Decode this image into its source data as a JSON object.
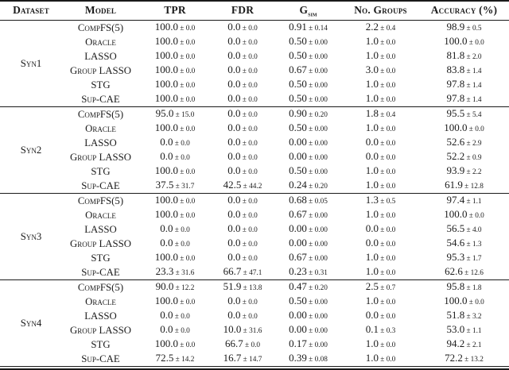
{
  "page": {
    "background": "#ffffff",
    "text_color": "#1b1b1b",
    "rule_color": "#1a1a1a"
  },
  "table": {
    "plus_minus": "±",
    "columns": [
      {
        "label": "Dataset"
      },
      {
        "label": "Model"
      },
      {
        "label": "TPR"
      },
      {
        "label": "FDR"
      },
      {
        "label": "G",
        "sub": "sim"
      },
      {
        "label": "No. Groups"
      },
      {
        "label": "Accuracy (%)"
      }
    ],
    "blocks": [
      {
        "dataset": "Syn1",
        "rows": [
          {
            "model": "CompFS(5)",
            "values": [
              {
                "v": "100.0",
                "e": "0.0"
              },
              {
                "v": "0.0",
                "e": "0.0"
              },
              {
                "v": "0.91",
                "e": "0.14"
              },
              {
                "v": "2.2",
                "e": "0.4"
              },
              {
                "v": "98.9",
                "e": "0.5"
              }
            ]
          },
          {
            "model": "Oracle",
            "values": [
              {
                "v": "100.0",
                "e": "0.0"
              },
              {
                "v": "0.0",
                "e": "0.0"
              },
              {
                "v": "0.50",
                "e": "0.00"
              },
              {
                "v": "1.0",
                "e": "0.0"
              },
              {
                "v": "100.0",
                "e": "0.0"
              }
            ]
          },
          {
            "model": "LASSO",
            "values": [
              {
                "v": "100.0",
                "e": "0.0"
              },
              {
                "v": "0.0",
                "e": "0.0"
              },
              {
                "v": "0.50",
                "e": "0.00"
              },
              {
                "v": "1.0",
                "e": "0.0"
              },
              {
                "v": "81.8",
                "e": "2.0"
              }
            ]
          },
          {
            "model": "Group LASSO",
            "values": [
              {
                "v": "100.0",
                "e": "0.0"
              },
              {
                "v": "0.0",
                "e": "0.0"
              },
              {
                "v": "0.67",
                "e": "0.00"
              },
              {
                "v": "3.0",
                "e": "0.0"
              },
              {
                "v": "83.8",
                "e": "1.4"
              }
            ]
          },
          {
            "model": "STG",
            "values": [
              {
                "v": "100.0",
                "e": "0.0"
              },
              {
                "v": "0.0",
                "e": "0.0"
              },
              {
                "v": "0.50",
                "e": "0.00"
              },
              {
                "v": "1.0",
                "e": "0.0"
              },
              {
                "v": "97.8",
                "e": "1.4"
              }
            ]
          },
          {
            "model": "Sup-CAE",
            "values": [
              {
                "v": "100.0",
                "e": "0.0"
              },
              {
                "v": "0.0",
                "e": "0.0"
              },
              {
                "v": "0.50",
                "e": "0.00"
              },
              {
                "v": "1.0",
                "e": "0.0"
              },
              {
                "v": "97.8",
                "e": "1.4"
              }
            ]
          }
        ]
      },
      {
        "dataset": "Syn2",
        "rows": [
          {
            "model": "CompFS(5)",
            "values": [
              {
                "v": "95.0",
                "e": "15.0"
              },
              {
                "v": "0.0",
                "e": "0.0"
              },
              {
                "v": "0.90",
                "e": "0.20"
              },
              {
                "v": "1.8",
                "e": "0.4"
              },
              {
                "v": "95.5",
                "e": "5.4"
              }
            ]
          },
          {
            "model": "Oracle",
            "values": [
              {
                "v": "100.0",
                "e": "0.0"
              },
              {
                "v": "0.0",
                "e": "0.0"
              },
              {
                "v": "0.50",
                "e": "0.00"
              },
              {
                "v": "1.0",
                "e": "0.0"
              },
              {
                "v": "100.0",
                "e": "0.0"
              }
            ]
          },
          {
            "model": "LASSO",
            "values": [
              {
                "v": "0.0",
                "e": "0.0"
              },
              {
                "v": "0.0",
                "e": "0.0"
              },
              {
                "v": "0.00",
                "e": "0.00"
              },
              {
                "v": "0.0",
                "e": "0.0"
              },
              {
                "v": "52.6",
                "e": "2.9"
              }
            ]
          },
          {
            "model": "Group LASSO",
            "values": [
              {
                "v": "0.0",
                "e": "0.0"
              },
              {
                "v": "0.0",
                "e": "0.0"
              },
              {
                "v": "0.00",
                "e": "0.00"
              },
              {
                "v": "0.0",
                "e": "0.0"
              },
              {
                "v": "52.2",
                "e": "0.9"
              }
            ]
          },
          {
            "model": "STG",
            "values": [
              {
                "v": "100.0",
                "e": "0.0"
              },
              {
                "v": "0.0",
                "e": "0.0"
              },
              {
                "v": "0.50",
                "e": "0.00"
              },
              {
                "v": "1.0",
                "e": "0.0"
              },
              {
                "v": "93.9",
                "e": "2.2"
              }
            ]
          },
          {
            "model": "Sup-CAE",
            "values": [
              {
                "v": "37.5",
                "e": "31.7"
              },
              {
                "v": "42.5",
                "e": "44.2"
              },
              {
                "v": "0.24",
                "e": "0.20"
              },
              {
                "v": "1.0",
                "e": "0.0"
              },
              {
                "v": "61.9",
                "e": "12.8"
              }
            ]
          }
        ]
      },
      {
        "dataset": "Syn3",
        "rows": [
          {
            "model": "CompFS(5)",
            "values": [
              {
                "v": "100.0",
                "e": "0.0"
              },
              {
                "v": "0.0",
                "e": "0.0"
              },
              {
                "v": "0.68",
                "e": "0.05"
              },
              {
                "v": "1.3",
                "e": "0.5"
              },
              {
                "v": "97.4",
                "e": "1.1"
              }
            ]
          },
          {
            "model": "Oracle",
            "values": [
              {
                "v": "100.0",
                "e": "0.0"
              },
              {
                "v": "0.0",
                "e": "0.0"
              },
              {
                "v": "0.67",
                "e": "0.00"
              },
              {
                "v": "1.0",
                "e": "0.0"
              },
              {
                "v": "100.0",
                "e": "0.0"
              }
            ]
          },
          {
            "model": "LASSO",
            "values": [
              {
                "v": "0.0",
                "e": "0.0"
              },
              {
                "v": "0.0",
                "e": "0.0"
              },
              {
                "v": "0.00",
                "e": "0.00"
              },
              {
                "v": "0.0",
                "e": "0.0"
              },
              {
                "v": "56.5",
                "e": "4.0"
              }
            ]
          },
          {
            "model": "Group LASSO",
            "values": [
              {
                "v": "0.0",
                "e": "0.0"
              },
              {
                "v": "0.0",
                "e": "0.0"
              },
              {
                "v": "0.00",
                "e": "0.00"
              },
              {
                "v": "0.0",
                "e": "0.0"
              },
              {
                "v": "54.6",
                "e": "1.3"
              }
            ]
          },
          {
            "model": "STG",
            "values": [
              {
                "v": "100.0",
                "e": "0.0"
              },
              {
                "v": "0.0",
                "e": "0.0"
              },
              {
                "v": "0.67",
                "e": "0.00"
              },
              {
                "v": "1.0",
                "e": "0.0"
              },
              {
                "v": "95.3",
                "e": "1.7"
              }
            ]
          },
          {
            "model": "Sup-CAE",
            "values": [
              {
                "v": "23.3",
                "e": "31.6"
              },
              {
                "v": "66.7",
                "e": "47.1"
              },
              {
                "v": "0.23",
                "e": "0.31"
              },
              {
                "v": "1.0",
                "e": "0.0"
              },
              {
                "v": "62.6",
                "e": "12.6"
              }
            ]
          }
        ]
      },
      {
        "dataset": "Syn4",
        "rows": [
          {
            "model": "CompFS(5)",
            "values": [
              {
                "v": "90.0",
                "e": "12.2"
              },
              {
                "v": "51.9",
                "e": "13.8"
              },
              {
                "v": "0.47",
                "e": "0.20"
              },
              {
                "v": "2.5",
                "e": "0.7"
              },
              {
                "v": "95.8",
                "e": "1.8"
              }
            ]
          },
          {
            "model": "Oracle",
            "values": [
              {
                "v": "100.0",
                "e": "0.0"
              },
              {
                "v": "0.0",
                "e": "0.0"
              },
              {
                "v": "0.50",
                "e": "0.00"
              },
              {
                "v": "1.0",
                "e": "0.0"
              },
              {
                "v": "100.0",
                "e": "0.0"
              }
            ]
          },
          {
            "model": "LASSO",
            "values": [
              {
                "v": "0.0",
                "e": "0.0"
              },
              {
                "v": "0.0",
                "e": "0.0"
              },
              {
                "v": "0.00",
                "e": "0.00"
              },
              {
                "v": "0.0",
                "e": "0.0"
              },
              {
                "v": "51.8",
                "e": "3.2"
              }
            ]
          },
          {
            "model": "Group LASSO",
            "values": [
              {
                "v": "0.0",
                "e": "0.0"
              },
              {
                "v": "10.0",
                "e": "31.6"
              },
              {
                "v": "0.00",
                "e": "0.00"
              },
              {
                "v": "0.1",
                "e": "0.3"
              },
              {
                "v": "53.0",
                "e": "1.1"
              }
            ]
          },
          {
            "model": "STG",
            "values": [
              {
                "v": "100.0",
                "e": "0.0"
              },
              {
                "v": "66.7",
                "e": "0.0"
              },
              {
                "v": "0.17",
                "e": "0.00"
              },
              {
                "v": "1.0",
                "e": "0.0"
              },
              {
                "v": "94.2",
                "e": "2.1"
              }
            ]
          },
          {
            "model": "Sup-CAE",
            "values": [
              {
                "v": "72.5",
                "e": "14.2"
              },
              {
                "v": "16.7",
                "e": "14.7"
              },
              {
                "v": "0.39",
                "e": "0.08"
              },
              {
                "v": "1.0",
                "e": "0.0"
              },
              {
                "v": "72.2",
                "e": "13.2"
              }
            ]
          }
        ]
      }
    ]
  }
}
